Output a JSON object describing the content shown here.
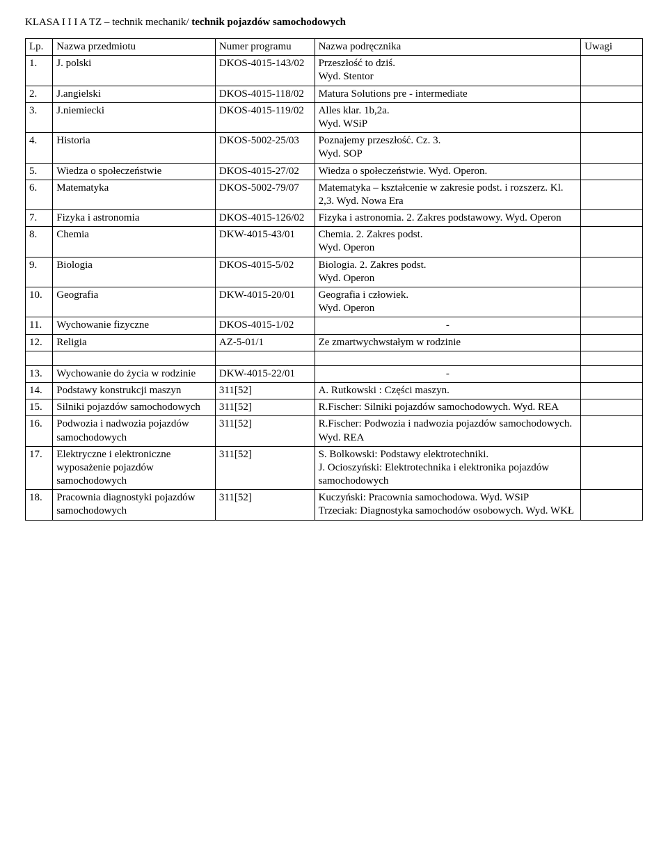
{
  "title_plain": "KLASA I I I A TZ – technik mechanik/ ",
  "title_bold": "technik pojazdów samochodowych",
  "headers": {
    "lp": "Lp.",
    "name": "Nazwa przedmiotu",
    "prog": "Numer programu",
    "book": "Nazwa podręcznika",
    "uwagi": "Uwagi"
  },
  "rows": [
    {
      "lp": "1.",
      "name": "J. polski",
      "prog": "DKOS-4015-143/02",
      "book": "Przeszłość to dziś.\nWyd. Stentor"
    },
    {
      "lp": "2.",
      "name": "J.angielski",
      "prog": "DKOS-4015-118/02",
      "book": "Matura Solutions pre - intermediate"
    },
    {
      "lp": "3.",
      "name": "J.niemiecki",
      "prog": "DKOS-4015-119/02",
      "book": "Alles klar. 1b,2a.\nWyd. WSiP"
    },
    {
      "lp": "4.",
      "name": "Historia",
      "prog": "DKOS-5002-25/03",
      "book": "Poznajemy przeszłość. Cz. 3.\nWyd. SOP"
    },
    {
      "lp": "5.",
      "name": "Wiedza o społeczeństwie",
      "prog": "DKOS-4015-27/02",
      "book": "Wiedza o społeczeństwie. Wyd. Operon."
    },
    {
      "lp": "6.",
      "name": "Matematyka",
      "prog": "DKOS-5002-79/07",
      "book": "Matematyka – kształcenie w zakresie podst. i rozszerz. Kl. 2,3. Wyd. Nowa Era"
    },
    {
      "lp": "7.",
      "name": "Fizyka i astronomia",
      "prog": "DKOS-4015-126/02",
      "book": "Fizyka i astronomia. 2. Zakres podstawowy. Wyd. Operon"
    },
    {
      "lp": "8.",
      "name": "Chemia",
      "prog": "DKW-4015-43/01",
      "book": "Chemia. 2. Zakres podst.\nWyd. Operon"
    },
    {
      "lp": "9.",
      "name": "Biologia",
      "prog": "DKOS-4015-5/02",
      "book": "Biologia. 2. Zakres podst.\nWyd. Operon"
    },
    {
      "lp": "10.",
      "name": "Geografia",
      "prog": "DKW-4015-20/01",
      "book": "Geografia i człowiek.\nWyd. Operon"
    },
    {
      "lp": "11.",
      "name": "Wychowanie fizyczne",
      "prog": "DKOS-4015-1/02",
      "book": "-",
      "center": true
    },
    {
      "lp": "12.",
      "name": "Religia",
      "prog": "AZ-5-01/1",
      "book": "Ze zmartwychwstałym w rodzinie",
      "gapAfter": true
    },
    {
      "lp": "13.",
      "name": "Wychowanie do życia w rodzinie",
      "prog": "DKW-4015-22/01",
      "book": "-",
      "center": true
    },
    {
      "lp": "14.",
      "name": "Podstawy konstrukcji maszyn",
      "prog": "311[52]",
      "book": "A. Rutkowski : Części maszyn."
    },
    {
      "lp": "15.",
      "name": "Silniki pojazdów samochodowych",
      "prog": "311[52]",
      "book": "R.Fischer: Silniki pojazdów samochodowych. Wyd. REA"
    },
    {
      "lp": "16.",
      "name": "Podwozia i nadwozia pojazdów samochodowych",
      "prog": "311[52]",
      "book": "R.Fischer: Podwozia i nadwozia pojazdów samochodowych.\nWyd. REA"
    },
    {
      "lp": "17.",
      "name": "Elektryczne i elektroniczne wyposażenie pojazdów samochodowych",
      "prog": "311[52]",
      "book": "S. Bolkowski: Podstawy elektrotechniki.\nJ. Ocioszyński: Elektrotechnika i elektronika pojazdów samochodowych"
    },
    {
      "lp": "18.",
      "name": "Pracownia diagnostyki pojazdów samochodowych",
      "prog": "311[52]",
      "book": "Kuczyński: Pracownia samochodowa. Wyd. WSiP\nTrzeciak: Diagnostyka samochodów osobowych. Wyd. WKŁ"
    }
  ]
}
